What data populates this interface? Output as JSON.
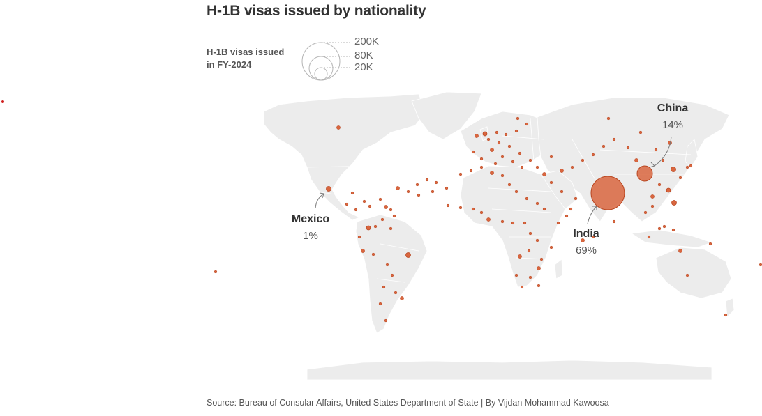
{
  "title": "H-1B visas issued by nationality",
  "legend": {
    "label_line1": "H-1B visas issued",
    "label_line2": "in FY-2024",
    "sizes": [
      "200K",
      "80K",
      "20K"
    ]
  },
  "annotations": [
    {
      "country": "China",
      "share": "14%"
    },
    {
      "country": "India",
      "share": "69%"
    },
    {
      "country": "Mexico",
      "share": "1%"
    }
  ],
  "source": "Source: Bureau of Consular Affairs, United States Department of State | By Vijdan Mohammad Kawoosa",
  "colors": {
    "bubble_fill": "#d9663f",
    "bubble_stroke": "#b8451f",
    "land": "#ececec",
    "border": "#ffffff",
    "text": "#333333"
  }
}
